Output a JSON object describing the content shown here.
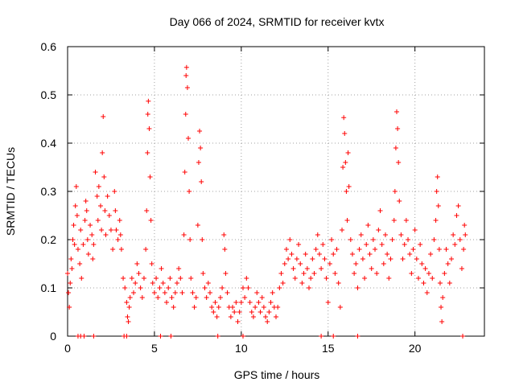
{
  "chart_data": {
    "type": "scatter",
    "title": "Day 066 of 2024, SRMTID for receiver kvtx",
    "xlabel": "GPS time / hours",
    "ylabel": "SRMTID / TECUs",
    "xlim": [
      0,
      24
    ],
    "ylim": [
      0,
      0.6
    ],
    "x_ticks": [
      0,
      5,
      10,
      15,
      20
    ],
    "y_ticks": [
      0,
      0.1,
      0.2,
      0.3,
      0.4,
      0.5,
      0.6
    ],
    "x_tick_labels": [
      "0",
      "5",
      "10",
      "15",
      "20"
    ],
    "y_tick_labels": [
      "0",
      "0.1",
      "0.2",
      "0.3",
      "0.4",
      "0.5",
      "0.6"
    ],
    "grid": true,
    "marker": "+",
    "color": "#ff0000",
    "series": [
      {
        "name": "SRMTID",
        "points": [
          [
            0.0,
            0.13
          ],
          [
            0.05,
            0.09
          ],
          [
            0.1,
            0.06
          ],
          [
            0.15,
            0.11
          ],
          [
            0.2,
            0.16
          ],
          [
            0.25,
            0.14
          ],
          [
            0.3,
            0.2
          ],
          [
            0.35,
            0.23
          ],
          [
            0.4,
            0.19
          ],
          [
            0.45,
            0.27
          ],
          [
            0.5,
            0.31
          ],
          [
            0.55,
            0.25
          ],
          [
            0.6,
            0.18
          ],
          [
            0.7,
            0.15
          ],
          [
            0.75,
            0.22
          ],
          [
            0.8,
            0.12
          ],
          [
            0.9,
            0.19
          ],
          [
            1.0,
            0.24
          ],
          [
            1.05,
            0.28
          ],
          [
            1.1,
            0.26
          ],
          [
            1.15,
            0.2
          ],
          [
            1.2,
            0.17
          ],
          [
            1.3,
            0.23
          ],
          [
            1.4,
            0.21
          ],
          [
            1.45,
            0.16
          ],
          [
            1.5,
            0.19
          ],
          [
            1.6,
            0.34
          ],
          [
            1.7,
            0.29
          ],
          [
            1.75,
            0.24
          ],
          [
            1.8,
            0.31
          ],
          [
            1.9,
            0.27
          ],
          [
            1.95,
            0.22
          ],
          [
            2.0,
            0.38
          ],
          [
            2.05,
            0.455
          ],
          [
            2.1,
            0.33
          ],
          [
            2.15,
            0.26
          ],
          [
            2.2,
            0.21
          ],
          [
            2.3,
            0.29
          ],
          [
            2.4,
            0.25
          ],
          [
            2.5,
            0.22
          ],
          [
            2.6,
            0.18
          ],
          [
            2.7,
            0.3
          ],
          [
            2.75,
            0.26
          ],
          [
            2.8,
            0.22
          ],
          [
            2.9,
            0.2
          ],
          [
            3.0,
            0.24
          ],
          [
            3.05,
            0.21
          ],
          [
            3.1,
            0.18
          ],
          [
            3.2,
            0.12
          ],
          [
            3.3,
            0.1
          ],
          [
            3.4,
            0.07
          ],
          [
            3.45,
            0.04
          ],
          [
            3.5,
            0.03
          ],
          [
            3.55,
            0.06
          ],
          [
            3.6,
            0.08
          ],
          [
            3.7,
            0.12
          ],
          [
            3.8,
            0.09
          ],
          [
            3.9,
            0.11
          ],
          [
            4.0,
            0.15
          ],
          [
            4.1,
            0.13
          ],
          [
            4.2,
            0.1
          ],
          [
            4.3,
            0.08
          ],
          [
            4.4,
            0.12
          ],
          [
            4.5,
            0.18
          ],
          [
            4.55,
            0.26
          ],
          [
            4.6,
            0.38
          ],
          [
            4.62,
            0.46
          ],
          [
            4.65,
            0.487
          ],
          [
            4.7,
            0.43
          ],
          [
            4.75,
            0.33
          ],
          [
            4.8,
            0.24
          ],
          [
            4.85,
            0.15
          ],
          [
            4.9,
            0.11
          ],
          [
            5.0,
            0.09
          ],
          [
            5.1,
            0.12
          ],
          [
            5.2,
            0.08
          ],
          [
            5.3,
            0.1
          ],
          [
            5.4,
            0.14
          ],
          [
            5.5,
            0.11
          ],
          [
            5.6,
            0.09
          ],
          [
            5.7,
            0.07
          ],
          [
            5.8,
            0.1
          ],
          [
            5.9,
            0.12
          ],
          [
            6.0,
            0.08
          ],
          [
            6.1,
            0.06
          ],
          [
            6.2,
            0.09
          ],
          [
            6.3,
            0.11
          ],
          [
            6.4,
            0.14
          ],
          [
            6.5,
            0.12
          ],
          [
            6.6,
            0.09
          ],
          [
            6.7,
            0.21
          ],
          [
            6.75,
            0.34
          ],
          [
            6.8,
            0.46
          ],
          [
            6.82,
            0.54
          ],
          [
            6.85,
            0.557
          ],
          [
            6.9,
            0.515
          ],
          [
            6.95,
            0.41
          ],
          [
            7.0,
            0.3
          ],
          [
            7.05,
            0.2
          ],
          [
            7.1,
            0.12
          ],
          [
            7.2,
            0.09
          ],
          [
            7.3,
            0.06
          ],
          [
            7.4,
            0.08
          ],
          [
            7.5,
            0.23
          ],
          [
            7.55,
            0.36
          ],
          [
            7.6,
            0.425
          ],
          [
            7.65,
            0.39
          ],
          [
            7.7,
            0.32
          ],
          [
            7.75,
            0.2
          ],
          [
            7.8,
            0.13
          ],
          [
            7.9,
            0.1
          ],
          [
            8.0,
            0.08
          ],
          [
            8.1,
            0.11
          ],
          [
            8.2,
            0.09
          ],
          [
            8.3,
            0.06
          ],
          [
            8.4,
            0.05
          ],
          [
            8.5,
            0.07
          ],
          [
            8.6,
            0.04
          ],
          [
            8.7,
            0.06
          ],
          [
            8.8,
            0.08
          ],
          [
            8.9,
            0.1
          ],
          [
            9.0,
            0.21
          ],
          [
            9.05,
            0.18
          ],
          [
            9.1,
            0.13
          ],
          [
            9.2,
            0.09
          ],
          [
            9.3,
            0.06
          ],
          [
            9.4,
            0.04
          ],
          [
            9.5,
            0.06
          ],
          [
            9.6,
            0.05
          ],
          [
            9.7,
            0.07
          ],
          [
            9.8,
            0.03
          ],
          [
            9.9,
            0.05
          ],
          [
            10.0,
            0.07
          ],
          [
            10.1,
            0.1
          ],
          [
            10.2,
            0.08
          ],
          [
            10.3,
            0.12
          ],
          [
            10.4,
            0.1
          ],
          [
            10.5,
            0.07
          ],
          [
            10.6,
            0.05
          ],
          [
            10.7,
            0.04
          ],
          [
            10.8,
            0.06
          ],
          [
            10.9,
            0.09
          ],
          [
            11.0,
            0.07
          ],
          [
            11.1,
            0.05
          ],
          [
            11.2,
            0.08
          ],
          [
            11.3,
            0.06
          ],
          [
            11.4,
            0.04
          ],
          [
            11.5,
            0.03
          ],
          [
            11.6,
            0.05
          ],
          [
            11.7,
            0.07
          ],
          [
            11.8,
            0.09
          ],
          [
            11.9,
            0.06
          ],
          [
            12.0,
            0.04
          ],
          [
            12.1,
            0.06
          ],
          [
            12.2,
            0.1
          ],
          [
            12.3,
            0.13
          ],
          [
            12.4,
            0.11
          ],
          [
            12.5,
            0.15
          ],
          [
            12.6,
            0.18
          ],
          [
            12.7,
            0.16
          ],
          [
            12.8,
            0.2
          ],
          [
            12.9,
            0.17
          ],
          [
            13.0,
            0.14
          ],
          [
            13.1,
            0.12
          ],
          [
            13.2,
            0.16
          ],
          [
            13.3,
            0.19
          ],
          [
            13.4,
            0.15
          ],
          [
            13.5,
            0.11
          ],
          [
            13.6,
            0.13
          ],
          [
            13.7,
            0.17
          ],
          [
            13.8,
            0.14
          ],
          [
            13.9,
            0.1
          ],
          [
            14.0,
            0.12
          ],
          [
            14.1,
            0.16
          ],
          [
            14.2,
            0.13
          ],
          [
            14.3,
            0.18
          ],
          [
            14.4,
            0.21
          ],
          [
            14.5,
            0.17
          ],
          [
            14.6,
            0.14
          ],
          [
            14.7,
            0.19
          ],
          [
            14.8,
            0.16
          ],
          [
            14.9,
            0.12
          ],
          [
            15.0,
            0.07
          ],
          [
            15.1,
            0.15
          ],
          [
            15.2,
            0.2
          ],
          [
            15.3,
            0.17
          ],
          [
            15.4,
            0.13
          ],
          [
            15.5,
            0.18
          ],
          [
            15.6,
            0.11
          ],
          [
            15.7,
            0.06
          ],
          [
            15.8,
            0.22
          ],
          [
            15.85,
            0.35
          ],
          [
            15.9,
            0.453
          ],
          [
            15.95,
            0.42
          ],
          [
            16.0,
            0.36
          ],
          [
            16.05,
            0.3
          ],
          [
            16.1,
            0.24
          ],
          [
            16.15,
            0.38
          ],
          [
            16.2,
            0.31
          ],
          [
            16.3,
            0.2
          ],
          [
            16.4,
            0.17
          ],
          [
            16.5,
            0.13
          ],
          [
            16.6,
            0.15
          ],
          [
            16.7,
            0.1
          ],
          [
            16.8,
            0.18
          ],
          [
            16.9,
            0.21
          ],
          [
            17.0,
            0.16
          ],
          [
            17.1,
            0.12
          ],
          [
            17.2,
            0.19
          ],
          [
            17.3,
            0.23
          ],
          [
            17.4,
            0.17
          ],
          [
            17.5,
            0.14
          ],
          [
            17.6,
            0.2
          ],
          [
            17.7,
            0.18
          ],
          [
            17.8,
            0.13
          ],
          [
            17.9,
            0.22
          ],
          [
            18.0,
            0.26
          ],
          [
            18.1,
            0.19
          ],
          [
            18.2,
            0.15
          ],
          [
            18.3,
            0.21
          ],
          [
            18.4,
            0.17
          ],
          [
            18.5,
            0.12
          ],
          [
            18.6,
            0.16
          ],
          [
            18.7,
            0.2
          ],
          [
            18.8,
            0.24
          ],
          [
            18.85,
            0.3
          ],
          [
            18.9,
            0.39
          ],
          [
            18.95,
            0.465
          ],
          [
            19.0,
            0.43
          ],
          [
            19.05,
            0.36
          ],
          [
            19.1,
            0.28
          ],
          [
            19.2,
            0.21
          ],
          [
            19.3,
            0.16
          ],
          [
            19.4,
            0.19
          ],
          [
            19.5,
            0.24
          ],
          [
            19.6,
            0.2
          ],
          [
            19.7,
            0.17
          ],
          [
            19.8,
            0.13
          ],
          [
            19.9,
            0.18
          ],
          [
            20.0,
            0.22
          ],
          [
            20.1,
            0.16
          ],
          [
            20.2,
            0.12
          ],
          [
            20.3,
            0.19
          ],
          [
            20.4,
            0.15
          ],
          [
            20.5,
            0.11
          ],
          [
            20.6,
            0.14
          ],
          [
            20.7,
            0.09
          ],
          [
            20.8,
            0.13
          ],
          [
            20.9,
            0.17
          ],
          [
            21.0,
            0.12
          ],
          [
            21.1,
            0.2
          ],
          [
            21.2,
            0.24
          ],
          [
            21.25,
            0.3
          ],
          [
            21.3,
            0.33
          ],
          [
            21.35,
            0.27
          ],
          [
            21.4,
            0.18
          ],
          [
            21.45,
            0.11
          ],
          [
            21.5,
            0.06
          ],
          [
            21.55,
            0.03
          ],
          [
            21.6,
            0.08
          ],
          [
            21.7,
            0.13
          ],
          [
            21.8,
            0.18
          ],
          [
            21.9,
            0.15
          ],
          [
            22.0,
            0.11
          ],
          [
            22.1,
            0.16
          ],
          [
            22.2,
            0.21
          ],
          [
            22.3,
            0.19
          ],
          [
            22.4,
            0.25
          ],
          [
            22.5,
            0.27
          ],
          [
            22.6,
            0.2
          ],
          [
            22.7,
            0.14
          ],
          [
            22.8,
            0.18
          ],
          [
            22.85,
            0.23
          ],
          [
            22.9,
            0.21
          ],
          [
            0.6,
            0.0
          ],
          [
            0.75,
            0.0
          ],
          [
            0.95,
            0.0
          ],
          [
            1.5,
            0.0
          ],
          [
            3.25,
            0.0
          ],
          [
            3.4,
            0.0
          ],
          [
            5.35,
            0.0
          ],
          [
            5.95,
            0.0
          ],
          [
            8.65,
            0.0
          ],
          [
            10.1,
            0.0
          ],
          [
            14.6,
            0.0
          ],
          [
            15.3,
            0.0
          ],
          [
            16.7,
            0.0
          ],
          [
            22.75,
            0.0
          ]
        ]
      }
    ]
  }
}
